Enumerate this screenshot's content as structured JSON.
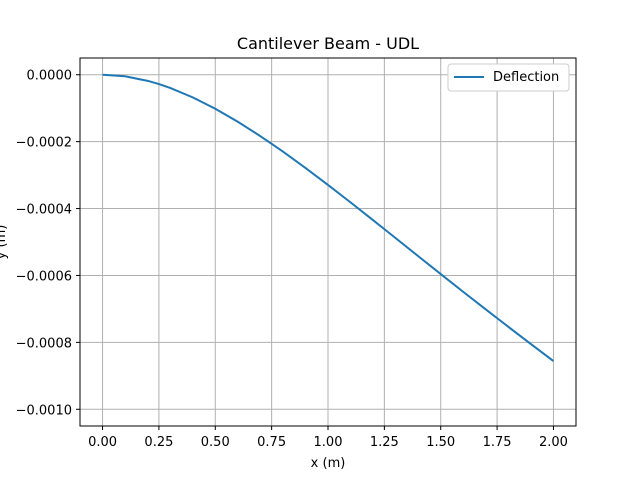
{
  "chart_data": {
    "type": "line",
    "title": "Cantilever Beam - UDL",
    "xlabel": "x (m)",
    "ylabel": "y (m)",
    "xlim": [
      -0.1,
      2.1
    ],
    "ylim": [
      -0.00105,
      5e-05
    ],
    "x_ticks": [
      0.0,
      0.25,
      0.5,
      0.75,
      1.0,
      1.25,
      1.5,
      1.75,
      2.0
    ],
    "x_tick_labels": [
      "0.00",
      "0.25",
      "0.50",
      "0.75",
      "1.00",
      "1.25",
      "1.50",
      "1.75",
      "2.00"
    ],
    "y_ticks": [
      0.0,
      -0.0002,
      -0.0004,
      -0.0006,
      -0.0008,
      -0.001
    ],
    "y_tick_labels": [
      "0.0000",
      "−0.0002",
      "−0.0004",
      "−0.0006",
      "−0.0008",
      "−0.0010"
    ],
    "grid": true,
    "legend_position": "top-right",
    "series": [
      {
        "name": "Deflection",
        "color": "#1f77b4",
        "x": [
          0.0,
          0.1,
          0.2,
          0.25,
          0.3,
          0.4,
          0.5,
          0.6,
          0.7,
          0.75,
          0.8,
          0.9,
          1.0,
          1.1,
          1.2,
          1.25,
          1.3,
          1.4,
          1.5,
          1.6,
          1.7,
          1.75,
          1.8,
          1.9,
          2.0
        ],
        "y": [
          0.0,
          -4.7e-06,
          -1.83e-05,
          -2.8e-05,
          -3.96e-05,
          -6.77e-05,
          -0.0001017,
          -0.0001406,
          -0.0001836,
          -0.0002065,
          -0.0002298,
          -0.0002786,
          -0.0003294,
          -0.0003816,
          -0.0004348,
          -0.0004615,
          -0.0004884,
          -0.0005422,
          -0.0005958,
          -0.000649,
          -0.0007016,
          -0.0007276,
          -0.0007536,
          -0.000805,
          -0.000856
        ]
      }
    ]
  }
}
